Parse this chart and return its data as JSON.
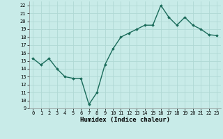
{
  "x": [
    0,
    1,
    2,
    3,
    4,
    5,
    6,
    7,
    8,
    9,
    10,
    11,
    12,
    13,
    14,
    15,
    16,
    17,
    18,
    19,
    20,
    21,
    22,
    23
  ],
  "y": [
    15.3,
    14.5,
    15.3,
    14.0,
    13.0,
    12.8,
    12.8,
    9.5,
    11.0,
    14.5,
    16.5,
    18.0,
    18.5,
    19.0,
    19.5,
    19.5,
    22.0,
    20.5,
    19.5,
    20.5,
    19.5,
    19.0,
    18.3,
    18.2
  ],
  "xlabel": "Humidex (Indice chaleur)",
  "ylim": [
    9,
    22.5
  ],
  "yticks": [
    9,
    10,
    11,
    12,
    13,
    14,
    15,
    16,
    17,
    18,
    19,
    20,
    21,
    22
  ],
  "xticks": [
    0,
    1,
    2,
    3,
    4,
    5,
    6,
    7,
    8,
    9,
    10,
    11,
    12,
    13,
    14,
    15,
    16,
    17,
    18,
    19,
    20,
    21,
    22,
    23
  ],
  "line_color": "#1a6b5a",
  "marker": "D",
  "marker_size": 1.8,
  "bg_color": "#c8ebe8",
  "grid_color": "#b0d8d4",
  "line_width": 1.0,
  "tick_fontsize": 5.0,
  "xlabel_fontsize": 6.5
}
